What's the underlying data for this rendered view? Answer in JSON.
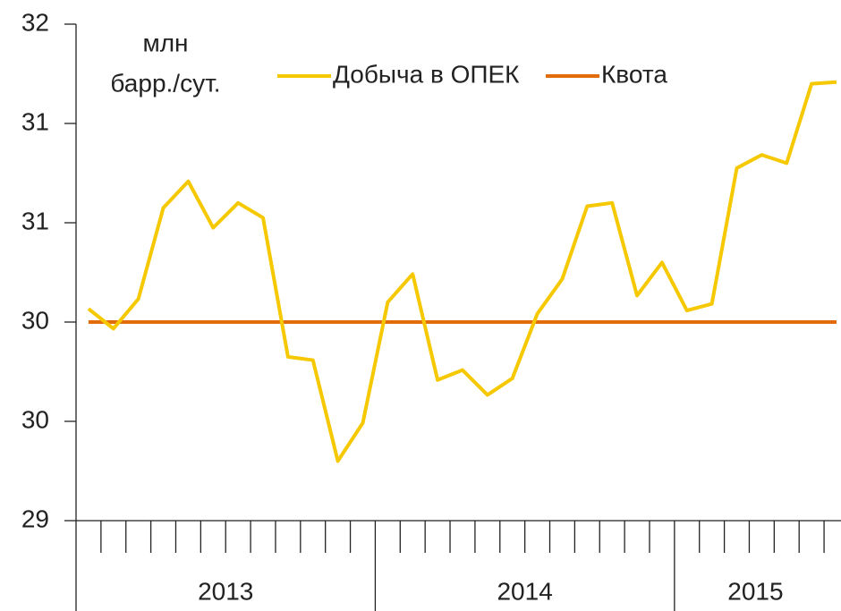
{
  "chart_data": {
    "type": "line",
    "y_label": [
      "млн",
      "барр./сут."
    ],
    "categories": [
      null,
      null,
      null,
      null,
      null,
      null,
      null,
      null,
      null,
      null,
      null,
      null,
      null,
      null,
      null,
      null,
      null,
      null,
      null,
      null,
      null,
      null,
      null,
      null,
      null,
      null,
      null,
      null,
      null,
      null,
      null
    ],
    "groups": [
      {
        "label": "2013",
        "span": 12
      },
      {
        "label": "2014",
        "span": 12
      },
      {
        "label": "2015",
        "span": 7
      }
    ],
    "series": [
      {
        "name": "Добыча в ОПЕК",
        "color": "#f5c800",
        "values": [
          30.28,
          30.16,
          30.34,
          30.89,
          31.05,
          30.77,
          30.92,
          30.83,
          29.99,
          29.97,
          29.36,
          29.59,
          30.32,
          30.49,
          29.85,
          29.91,
          29.76,
          29.86,
          30.25,
          30.46,
          30.9,
          30.92,
          30.36,
          30.56,
          30.27,
          30.31,
          31.13,
          31.21,
          31.16,
          31.64,
          31.65
        ]
      },
      {
        "name": "Квота",
        "color": "#e36c0a",
        "values": [
          30.2,
          30.2,
          30.2,
          30.2,
          30.2,
          30.2,
          30.2,
          30.2,
          30.2,
          30.2,
          30.2,
          30.2,
          30.2,
          30.2,
          30.2,
          30.2,
          30.2,
          30.2,
          30.2,
          30.2,
          30.2,
          30.2,
          30.2,
          30.2,
          30.2,
          30.2,
          30.2,
          30.2,
          30.2,
          30.2,
          30.2
        ]
      }
    ],
    "ylim": [
      29,
      32
    ],
    "yticks": [
      29,
      {
        "value": 29.6,
        "label": "30"
      },
      {
        "value": 30.2,
        "label": "30"
      },
      {
        "value": 30.8,
        "label": "31"
      },
      {
        "value": 31.4,
        "label": "31"
      },
      32
    ],
    "grid": false
  }
}
